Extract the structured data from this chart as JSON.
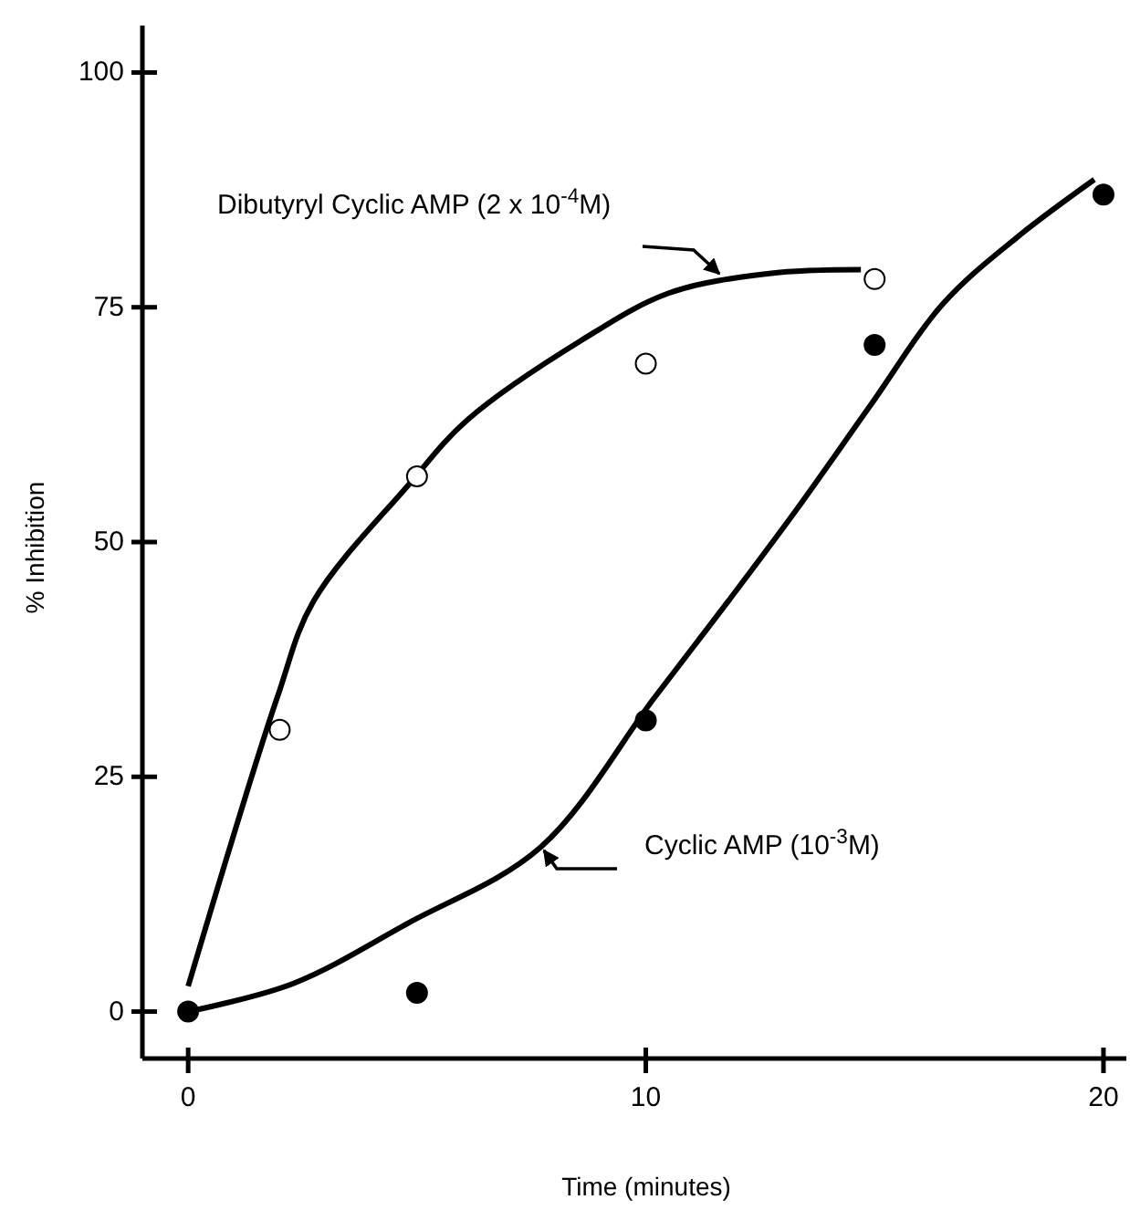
{
  "chart_data": {
    "type": "scatter",
    "xlabel": "Time (minutes)",
    "ylabel": "% Inhibition",
    "xlim": [
      -1,
      20.5
    ],
    "ylim": [
      -5,
      105
    ],
    "xticks": [
      0,
      10,
      20
    ],
    "yticks": [
      0,
      25,
      50,
      75,
      100
    ],
    "grid": false,
    "marker": "circle",
    "series": [
      {
        "type": "line",
        "color": "#000000",
        "x": [
          0,
          1.95,
          2.74,
          4.8,
          6.1,
          8.6,
          10.5,
          12.7,
          14.7
        ],
        "values": [
          2.7,
          33.5,
          43.7,
          56,
          63,
          71.5,
          76.5,
          78.6,
          79
        ],
        "marker": "none"
      },
      {
        "type": "line",
        "color": "#000000",
        "x": [
          0,
          2.3,
          4.8,
          7.7,
          10.2,
          11.8,
          13.3,
          14.9,
          16.5,
          18.1,
          19.8
        ],
        "values": [
          0,
          3,
          9.4,
          17.5,
          33.5,
          43.7,
          53.5,
          64.5,
          75.4,
          82.4,
          88.6
        ],
        "marker": "none"
      },
      {
        "color": "#ffffff",
        "x": [
          2,
          5,
          10,
          15
        ],
        "values": [
          30,
          57,
          69,
          78
        ]
      },
      {
        "color": "#000000",
        "x": [
          0,
          5,
          10,
          15,
          20
        ],
        "values": [
          0,
          2,
          31,
          71,
          87
        ]
      }
    ],
    "annotations": [
      "Dibutyryl Cyclic AMP (2 x 10$^{-4}$M)",
      "Cyclic AMP (10$^{-3}$M)"
    ]
  }
}
